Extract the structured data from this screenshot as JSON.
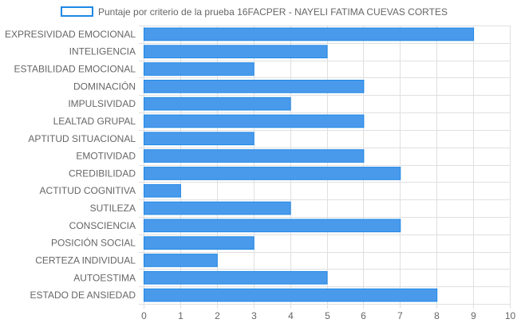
{
  "colors": {
    "bar_fill": "#4a9aec",
    "bar_stroke": "#1e88e5",
    "grid": "#e0e0e0",
    "label": "#666666"
  },
  "chart_data": {
    "type": "bar",
    "orientation": "horizontal",
    "categories": [
      "EXPRESIVIDAD EMOCIONAL",
      "INTELIGENCIA",
      "ESTABILIDAD EMOCIONAL",
      "DOMINACIÓN",
      "IMPULSIVIDAD",
      "LEALTAD GRUPAL",
      "APTITUD SITUACIONAL",
      "EMOTIVIDAD",
      "CREDIBILIDAD",
      "ACTITUD COGNITIVA",
      "SUTILEZA",
      "CONSCIENCIA",
      "POSICIÓN SOCIAL",
      "CERTEZA INDIVIDUAL",
      "AUTOESTIMA",
      "ESTADO DE ANSIEDAD"
    ],
    "series": [
      {
        "name": "Puntaje por criterio de la prueba 16FACPER - NAYELI FATIMA CUEVAS CORTES",
        "values": [
          9,
          5,
          3,
          6,
          4,
          6,
          3,
          6,
          7,
          1,
          4,
          7,
          3,
          2,
          5,
          8
        ]
      }
    ],
    "xlim": [
      0,
      10
    ],
    "xticks": [
      "0",
      "1",
      "2",
      "3",
      "4",
      "5",
      "6",
      "7",
      "8",
      "9",
      "10"
    ],
    "grid": true,
    "legend_position": "top"
  }
}
